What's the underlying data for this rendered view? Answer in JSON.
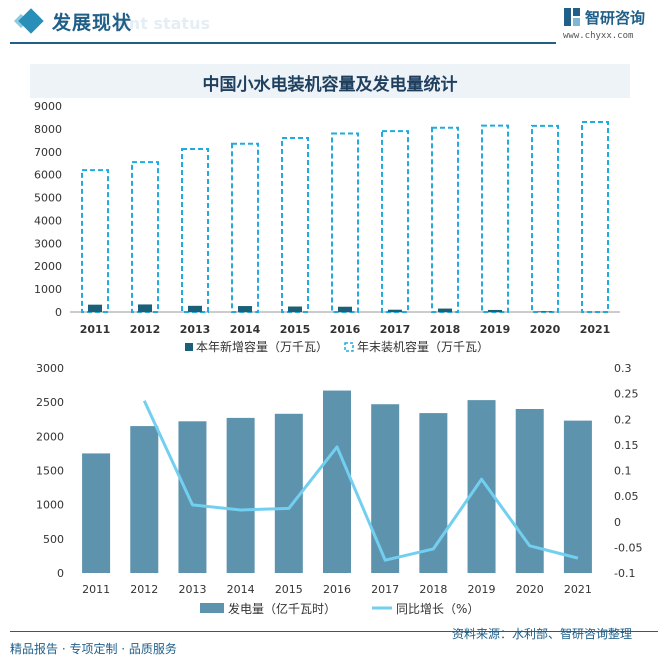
{
  "header": {
    "section_title": "发展现状",
    "ghost_text": "ent status",
    "brand_name": "智研咨询",
    "brand_url": "www.chyxx.com"
  },
  "chart_title": "中国小水电装机容量及发电量统计",
  "colors": {
    "dark": "#1a6079",
    "dashed": "#22aadd",
    "bar2": "#5e93ad",
    "line2": "#72cff0",
    "text": "#333333"
  },
  "chart_data": [
    {
      "type": "bar",
      "categories": [
        "2011",
        "2012",
        "2013",
        "2014",
        "2015",
        "2016",
        "2017",
        "2018",
        "2019",
        "2020",
        "2021"
      ],
      "series": [
        {
          "name": "本年新增容量（万千瓦）",
          "values": [
            320,
            330,
            270,
            260,
            240,
            230,
            100,
            150,
            90,
            30,
            0
          ]
        },
        {
          "name": "年末装机容量（万千瓦）",
          "values": [
            6200,
            6550,
            7120,
            7350,
            7600,
            7800,
            7900,
            8050,
            8140,
            8130,
            8300
          ]
        }
      ],
      "ylim": [
        0,
        9000
      ],
      "yticks": [
        0,
        1000,
        2000,
        3000,
        4000,
        5000,
        6000,
        7000,
        8000,
        9000
      ],
      "xlabel": "",
      "ylabel": "",
      "legend": "bottom"
    },
    {
      "type": "bar",
      "categories": [
        "2011",
        "2012",
        "2013",
        "2014",
        "2015",
        "2016",
        "2017",
        "2018",
        "2019",
        "2020",
        "2021"
      ],
      "series": [
        {
          "name": "发电量（亿千瓦时）",
          "type": "bar",
          "values": [
            1750,
            2150,
            2220,
            2270,
            2330,
            2670,
            2470,
            2340,
            2530,
            2400,
            2230
          ]
        },
        {
          "name": "同比增长（%）",
          "type": "line",
          "axis": "right",
          "values": [
            null,
            0.236,
            0.033,
            0.023,
            0.026,
            0.146,
            -0.075,
            -0.053,
            0.083,
            -0.047,
            -0.071
          ]
        }
      ],
      "ylim": [
        0,
        3000
      ],
      "yticks": [
        0,
        500,
        1000,
        1500,
        2000,
        2500,
        3000
      ],
      "y2lim": [
        -0.1,
        0.3
      ],
      "y2ticks": [
        "-0.1",
        "-0.05",
        "0",
        "0.05",
        "0.1",
        "0.15",
        "0.2",
        "0.25",
        "0.3"
      ],
      "xlabel": "",
      "ylabel": "",
      "legend": "bottom"
    }
  ],
  "footer": {
    "left": "精品报告 · 专项定制 · 品质服务",
    "right": "资料来源：水利部、智研咨询整理"
  }
}
